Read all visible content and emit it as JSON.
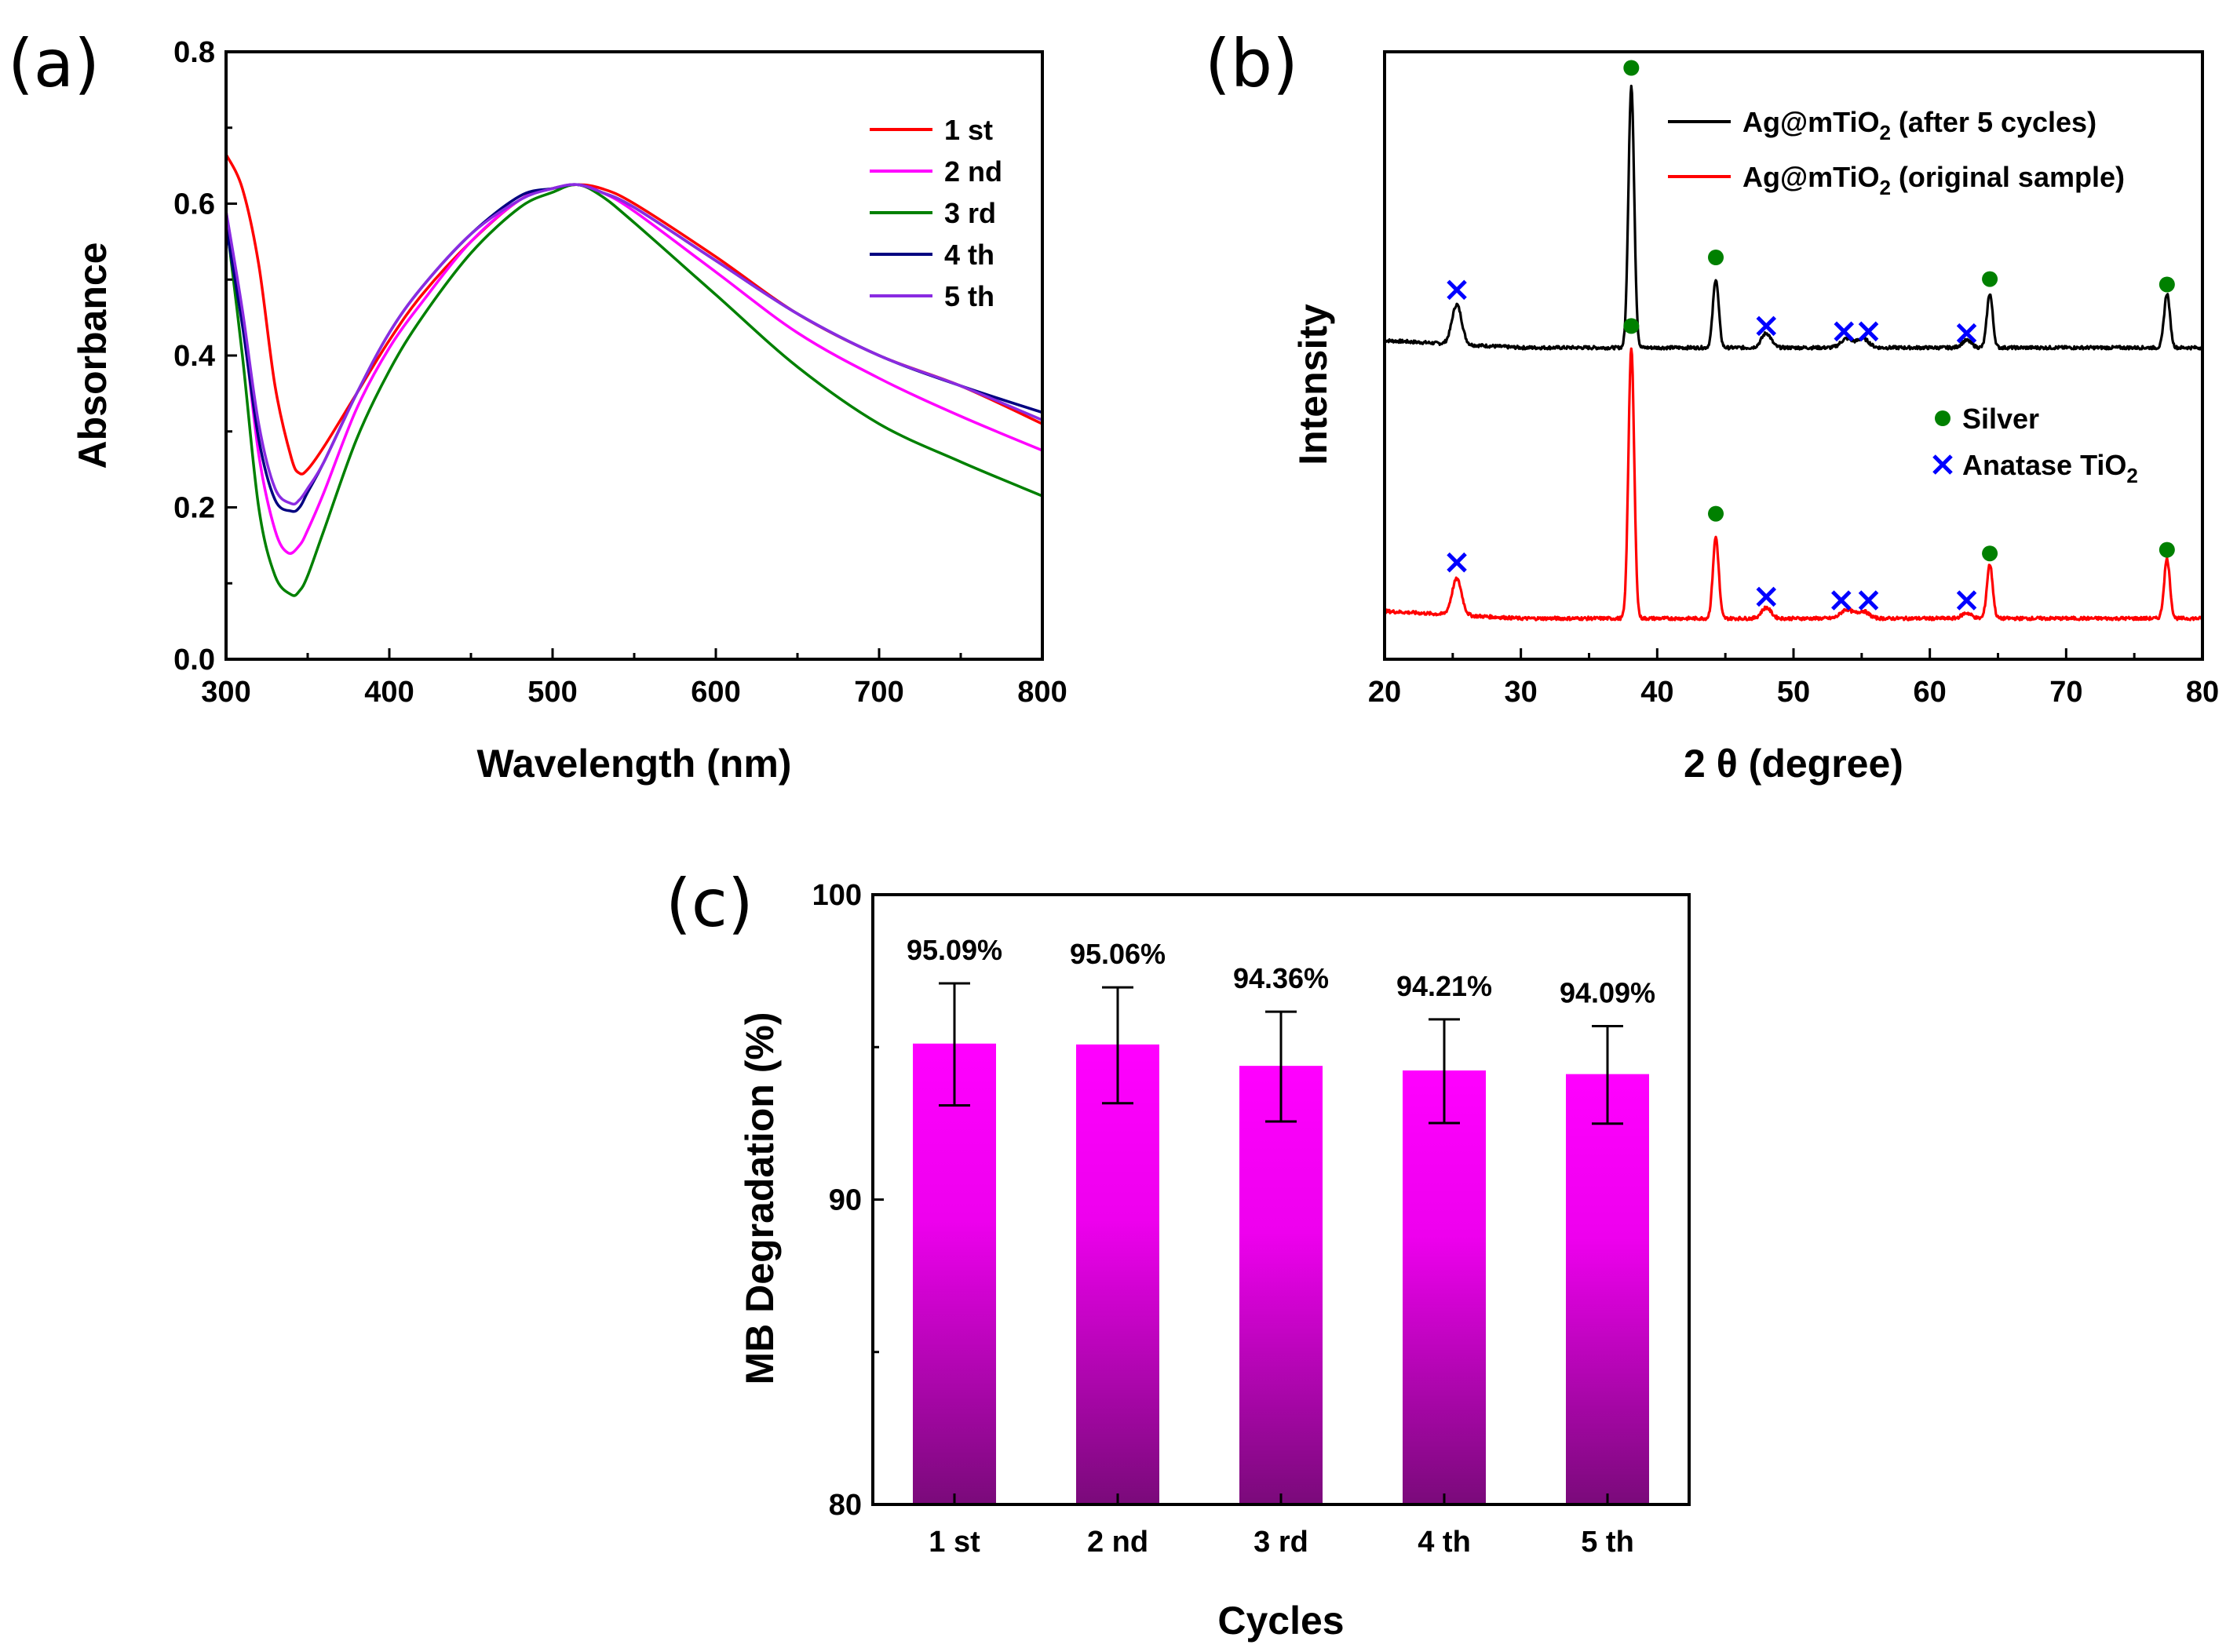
{
  "chart_data": [
    {
      "panel": "(a)",
      "type": "line",
      "title": "",
      "xlabel": "Wavelength (nm)",
      "ylabel": "Absorbance",
      "xlim": [
        300,
        800
      ],
      "ylim": [
        0.0,
        0.8
      ],
      "xticks": [
        "300",
        "400",
        "500",
        "600",
        "700",
        "800"
      ],
      "yticks": [
        "0.0",
        "0.2",
        "0.4",
        "0.6",
        "0.8"
      ],
      "legend_position": "top-right",
      "series": [
        {
          "name": "1 st",
          "color": "#ff0000",
          "x": [
            300,
            310,
            320,
            330,
            340,
            345,
            350,
            360,
            380,
            400,
            420,
            450,
            480,
            500,
            515,
            530,
            550,
            600,
            650,
            700,
            750,
            800
          ],
          "y": [
            0.665,
            0.62,
            0.52,
            0.36,
            0.265,
            0.245,
            0.25,
            0.28,
            0.35,
            0.42,
            0.48,
            0.55,
            0.605,
            0.62,
            0.625,
            0.62,
            0.6,
            0.53,
            0.455,
            0.4,
            0.36,
            0.31
          ]
        },
        {
          "name": "2 nd",
          "color": "#ff00ff",
          "x": [
            300,
            310,
            320,
            330,
            338,
            345,
            350,
            360,
            380,
            400,
            420,
            450,
            480,
            500,
            515,
            530,
            550,
            600,
            650,
            700,
            750,
            800
          ],
          "y": [
            0.59,
            0.45,
            0.27,
            0.17,
            0.14,
            0.15,
            0.17,
            0.22,
            0.33,
            0.41,
            0.47,
            0.55,
            0.605,
            0.62,
            0.625,
            0.615,
            0.59,
            0.51,
            0.43,
            0.37,
            0.32,
            0.275
          ]
        },
        {
          "name": "3 rd",
          "color": "#008000",
          "x": [
            300,
            310,
            320,
            330,
            340,
            345,
            350,
            360,
            380,
            400,
            420,
            450,
            480,
            500,
            515,
            530,
            550,
            600,
            650,
            700,
            750,
            800
          ],
          "y": [
            0.58,
            0.4,
            0.2,
            0.11,
            0.085,
            0.09,
            0.11,
            0.17,
            0.29,
            0.38,
            0.45,
            0.535,
            0.595,
            0.615,
            0.625,
            0.61,
            0.575,
            0.48,
            0.385,
            0.31,
            0.26,
            0.215
          ]
        },
        {
          "name": "4 th",
          "color": "#000080",
          "x": [
            300,
            310,
            320,
            330,
            340,
            345,
            350,
            360,
            380,
            400,
            420,
            450,
            480,
            500,
            515,
            530,
            550,
            600,
            650,
            700,
            750,
            800
          ],
          "y": [
            0.57,
            0.44,
            0.29,
            0.21,
            0.195,
            0.2,
            0.22,
            0.26,
            0.35,
            0.43,
            0.49,
            0.56,
            0.61,
            0.62,
            0.625,
            0.615,
            0.595,
            0.525,
            0.455,
            0.4,
            0.36,
            0.325
          ]
        },
        {
          "name": "5 th",
          "color": "#8a2be2",
          "x": [
            300,
            310,
            320,
            330,
            340,
            345,
            350,
            360,
            380,
            400,
            420,
            450,
            480,
            500,
            515,
            530,
            550,
            600,
            650,
            700,
            750,
            800
          ],
          "y": [
            0.59,
            0.46,
            0.31,
            0.225,
            0.205,
            0.21,
            0.225,
            0.26,
            0.35,
            0.43,
            0.49,
            0.56,
            0.605,
            0.62,
            0.625,
            0.615,
            0.595,
            0.525,
            0.455,
            0.4,
            0.36,
            0.315
          ]
        }
      ]
    },
    {
      "panel": "(b)",
      "type": "line",
      "title": "",
      "xlabel": "2 θ (degree)",
      "ylabel": "Intensity",
      "xlim": [
        20,
        80
      ],
      "xticks": [
        "20",
        "30",
        "40",
        "50",
        "60",
        "70",
        "80"
      ],
      "legend_position": "top-right",
      "series": [
        {
          "name": "Ag@mTiO2 (after 5 cycles)",
          "color": "#000000",
          "baseline": 1.0,
          "peaks": [
            [
              25.3,
              0.22,
              0.5
            ],
            [
              38.1,
              1.45,
              0.3
            ],
            [
              44.3,
              0.38,
              0.3
            ],
            [
              48.0,
              0.08,
              0.5
            ],
            [
              53.9,
              0.05,
              0.6
            ],
            [
              55.1,
              0.05,
              0.6
            ],
            [
              62.7,
              0.04,
              0.5
            ],
            [
              64.4,
              0.3,
              0.3
            ],
            [
              77.4,
              0.3,
              0.3
            ]
          ]
        },
        {
          "name": "Ag@mTiO2 (original sample)",
          "color": "#ff0000",
          "baseline": 0.0,
          "peaks": [
            [
              25.3,
              0.2,
              0.5
            ],
            [
              38.1,
              1.5,
              0.3
            ],
            [
              44.3,
              0.45,
              0.3
            ],
            [
              48.0,
              0.06,
              0.5
            ],
            [
              53.9,
              0.05,
              0.6
            ],
            [
              55.1,
              0.04,
              0.6
            ],
            [
              62.7,
              0.03,
              0.5
            ],
            [
              64.4,
              0.3,
              0.3
            ],
            [
              77.4,
              0.33,
              0.3
            ]
          ]
        }
      ],
      "markers": {
        "silver": {
          "label": "Silver",
          "color": "#008000",
          "positions_black": [
            [
              38.1,
              2.55
            ],
            [
              44.3,
              1.5
            ],
            [
              64.4,
              1.38
            ],
            [
              77.4,
              1.35
            ]
          ],
          "positions_red": [
            [
              38.1,
              1.62
            ],
            [
              44.3,
              0.58
            ],
            [
              64.4,
              0.36
            ],
            [
              77.4,
              0.38
            ]
          ]
        },
        "anatase": {
          "label": "Anatase TiO2",
          "color": "#0000ff",
          "positions_black": [
            [
              25.3,
              1.32
            ],
            [
              48.0,
              1.12
            ],
            [
              53.7,
              1.09
            ],
            [
              55.5,
              1.09
            ],
            [
              62.7,
              1.08
            ]
          ],
          "positions_red": [
            [
              25.3,
              0.31
            ],
            [
              48.0,
              0.12
            ],
            [
              53.5,
              0.1
            ],
            [
              55.5,
              0.1
            ],
            [
              62.7,
              0.1
            ]
          ]
        }
      }
    },
    {
      "panel": "(c)",
      "type": "bar",
      "title": "",
      "xlabel": "Cycles",
      "ylabel": "MB Degradation (%)",
      "ylim": [
        80,
        100
      ],
      "yticks": [
        "80",
        "90",
        "100"
      ],
      "categories": [
        "1 st",
        "2 nd",
        "3 rd",
        "4 th",
        "5 th"
      ],
      "values": [
        95.09,
        95.06,
        94.36,
        94.21,
        94.09
      ],
      "errors": [
        2.0,
        1.9,
        1.8,
        1.7,
        1.6
      ],
      "data_labels": [
        "95.09%",
        "95.06%",
        "94.36%",
        "94.21%",
        "94.09%"
      ],
      "bar_color_top": "#ff00ff",
      "bar_color_bottom": "#800080"
    }
  ]
}
